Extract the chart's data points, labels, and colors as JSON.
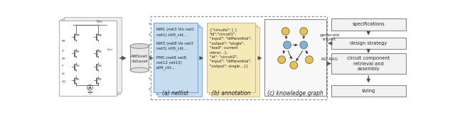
{
  "background": "#ffffff",
  "netlist_text": "NM1 (net3 Vin net1\nnet1) n09_ckt...\n\nNM3 (net8 Vb net3\nnet3) n09_ckt...\n\nPM5 (net8 net8\nnet12 net12)\np09_ckt...",
  "annotation_text": "{\"circuits\": [ {\n\"id\":\"circuit1\",\n\"input\": \"differential\",\n\"output\": \"single\",\n\"load\": current\nmirror...},\n\"id\": \"circuit2\",\n\"input\": \"differential\",\n\"output\": single...}]",
  "label_a": "(a) netlist",
  "label_b": "(b) annotation",
  "label_c": "(c) knowledge graph",
  "box_labels": [
    "specifications",
    "design strategy",
    "circuit component\nretrieval and\nassembly",
    "sizing"
  ],
  "arrow_label_triplet": "generate\ntriplet",
  "arrow_label_rag": "KG-RAG",
  "blue_color": "#c6ddf0",
  "yellow_color": "#f5e9b8",
  "node_blue": "#7fb3d3",
  "node_yellow": "#f0c040",
  "border_color": "#999999",
  "arrow_color": "#555555",
  "text_color": "#222222",
  "box_fill": "#f2f2f2",
  "box_edge": "#888888"
}
